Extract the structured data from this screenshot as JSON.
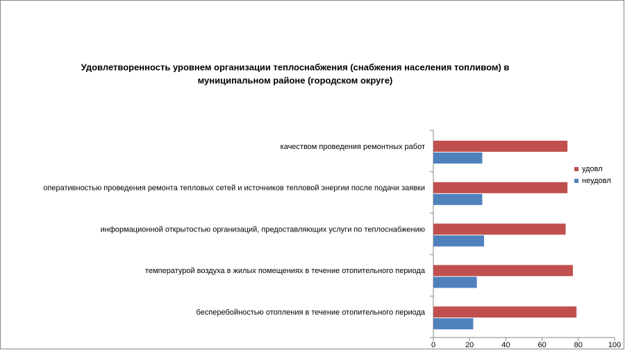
{
  "chart_data": {
    "type": "bar",
    "orientation": "horizontal",
    "title": [
      "Удовлетворенность уровнем организации теплоснабжения (снабжения населения топливом) в",
      "муниципальном районе (городском округе)"
    ],
    "categories": [
      "качеством проведения ремонтных работ",
      "оперативностью проведения ремонта тепловых сетей и источников тепловой энергии после подачи заявки",
      "информационной открытостью организаций, предоставляющих услуги по теплоснабжению",
      "температурой воздуха в жилых помещениях в течение отопительного периода",
      "бесперебойностью отопления в течение отопительного периода"
    ],
    "series": [
      {
        "name": "удовл",
        "color": "#c0504d",
        "values": [
          74,
          74,
          73,
          77,
          79
        ]
      },
      {
        "name": "неудовл",
        "color": "#4f81bd",
        "values": [
          27,
          27,
          28,
          24,
          22
        ]
      }
    ],
    "xlim": [
      0,
      100
    ],
    "xticks": [
      0,
      20,
      40,
      60,
      80,
      100
    ],
    "grid": false,
    "legend": "right"
  }
}
